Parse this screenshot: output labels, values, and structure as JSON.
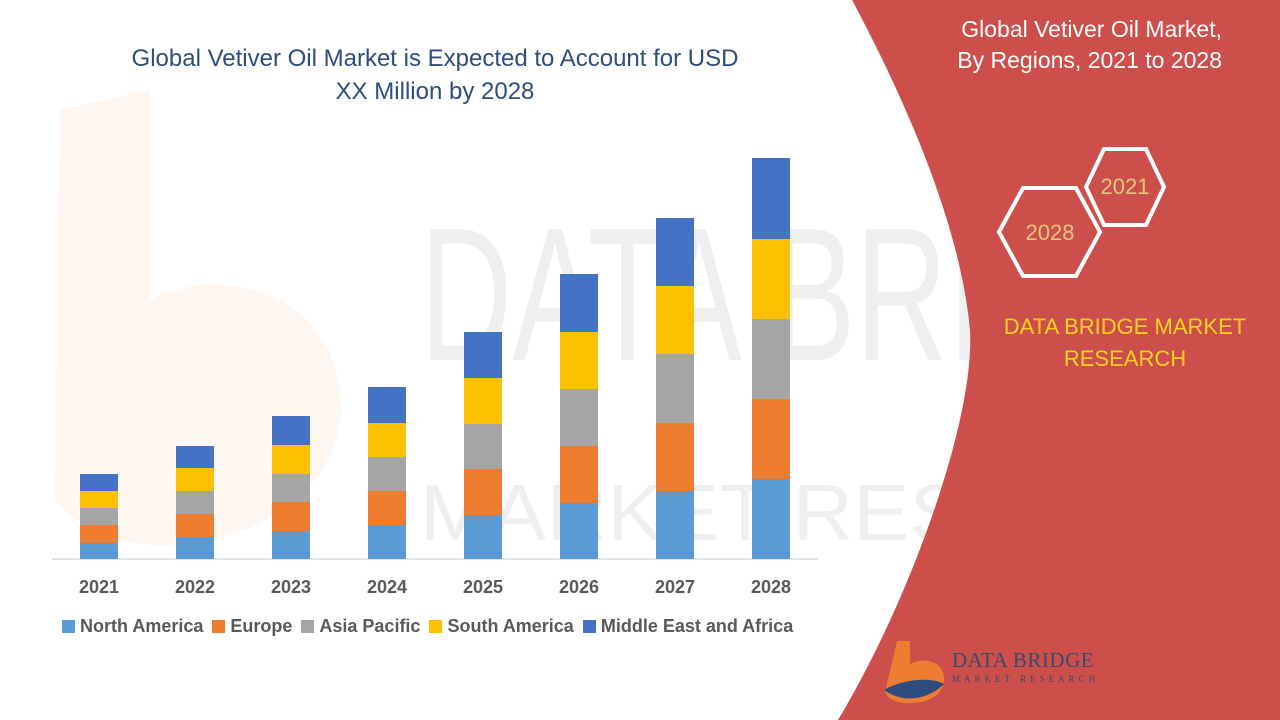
{
  "chart_data": {
    "type": "bar",
    "stacked": true,
    "title": "Global Vetiver Oil Market is Expected to Account for USD XX Million by 2028",
    "xlabel": "",
    "ylabel": "",
    "categories": [
      "2021",
      "2022",
      "2023",
      "2024",
      "2025",
      "2026",
      "2027",
      "2028"
    ],
    "ylim": [
      0,
      400
    ],
    "grid": false,
    "legend_position": "bottom",
    "series": [
      {
        "name": "North America",
        "color": "#5b9bd5",
        "values": [
          16,
          22,
          28,
          34,
          44,
          56,
          68,
          80
        ]
      },
      {
        "name": "Europe",
        "color": "#ed7d31",
        "values": [
          18,
          23,
          29,
          34,
          46,
          57,
          68,
          80
        ]
      },
      {
        "name": "Asia Pacific",
        "color": "#a5a5a5",
        "values": [
          17,
          23,
          28,
          34,
          45,
          57,
          69,
          80
        ]
      },
      {
        "name": "South America",
        "color": "#ffc000",
        "values": [
          17,
          23,
          29,
          34,
          46,
          57,
          68,
          80
        ]
      },
      {
        "name": "Middle East and Africa",
        "color": "#4472c4",
        "values": [
          17,
          22,
          29,
          36,
          46,
          58,
          68,
          81
        ]
      }
    ]
  },
  "panel": {
    "title_line1": "Global Vetiver Oil Market,",
    "title_line2": "By Regions, 2021 to 2028",
    "hex_start_label": "2021",
    "hex_end_label": "2028",
    "brand_line1": "DATA BRIDGE MARKET",
    "brand_line2": "RESEARCH",
    "background_color": "#cd4f4b",
    "brand_color": "#ffd21f"
  },
  "logo": {
    "name": "DATA BRIDGE",
    "tagline": "MARKET RESEARCH"
  },
  "watermark": {
    "text1": "DATA BRIDGE",
    "text2": "MARKET RESEARCH"
  }
}
